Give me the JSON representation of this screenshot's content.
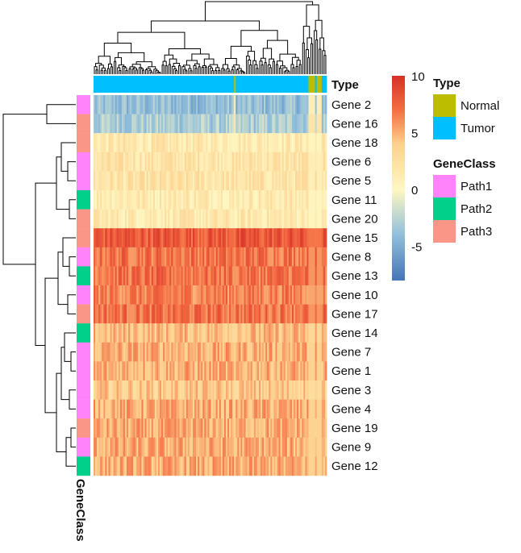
{
  "chart_data": {
    "type": "heatmap",
    "rows": [
      {
        "gene": "Gene 2",
        "class": "Path1"
      },
      {
        "gene": "Gene 16",
        "class": "Path3"
      },
      {
        "gene": "Gene 18",
        "class": "Path3"
      },
      {
        "gene": "Gene 6",
        "class": "Path1"
      },
      {
        "gene": "Gene 5",
        "class": "Path1"
      },
      {
        "gene": "Gene 11",
        "class": "Path2"
      },
      {
        "gene": "Gene 20",
        "class": "Path3"
      },
      {
        "gene": "Gene 15",
        "class": "Path3"
      },
      {
        "gene": "Gene 8",
        "class": "Path1"
      },
      {
        "gene": "Gene 13",
        "class": "Path2"
      },
      {
        "gene": "Gene 10",
        "class": "Path1"
      },
      {
        "gene": "Gene 17",
        "class": "Path3"
      },
      {
        "gene": "Gene 14",
        "class": "Path2"
      },
      {
        "gene": "Gene 7",
        "class": "Path1"
      },
      {
        "gene": "Gene 1",
        "class": "Path1"
      },
      {
        "gene": "Gene 3",
        "class": "Path1"
      },
      {
        "gene": "Gene 4",
        "class": "Path1"
      },
      {
        "gene": "Gene 19",
        "class": "Path3"
      },
      {
        "gene": "Gene 9",
        "class": "Path1"
      },
      {
        "gene": "Gene 12",
        "class": "Path2"
      }
    ],
    "row_mean_values": [
      -4.0,
      -3.0,
      1.5,
      2.0,
      2.0,
      1.5,
      1.5,
      8.0,
      7.0,
      7.0,
      6.5,
      7.0,
      4.5,
      5.0,
      5.0,
      4.0,
      5.0,
      5.0,
      5.0,
      5.0
    ],
    "sample_types": {
      "groups": [
        {
          "type": "Tumor",
          "count": 85
        },
        {
          "type": "Normal",
          "count": 1
        },
        {
          "type": "Tumor",
          "count": 44
        },
        {
          "type": "Normal",
          "count": 4
        },
        {
          "type": "Tumor",
          "count": 1
        },
        {
          "type": "Normal",
          "count": 3
        },
        {
          "type": "Tumor",
          "count": 3
        }
      ]
    },
    "color_scale": {
      "min": -8,
      "max": 10,
      "ticks": [
        10,
        5,
        0,
        -5
      ],
      "stops": [
        {
          "value": -8,
          "color": "#4575b4"
        },
        {
          "value": -4,
          "color": "#91bfdb"
        },
        {
          "value": 0,
          "color": "#fef7c2"
        },
        {
          "value": 4,
          "color": "#fdd18f"
        },
        {
          "value": 7,
          "color": "#f46d43"
        },
        {
          "value": 10,
          "color": "#d73027"
        }
      ]
    },
    "annotations": {
      "column_annotation_title": "Type",
      "row_annotation_title": "GeneClass"
    },
    "legends": {
      "type": {
        "title": "Type",
        "entries": [
          {
            "label": "Normal",
            "color": "#bcbd00"
          },
          {
            "label": "Tumor",
            "color": "#00bfff"
          }
        ]
      },
      "gene_class": {
        "title": "GeneClass",
        "entries": [
          {
            "label": "Path1",
            "color": "#ff83fa"
          },
          {
            "label": "Path2",
            "color": "#00d08a"
          },
          {
            "label": "Path3",
            "color": "#fa9687"
          }
        ]
      }
    },
    "dendrograms": {
      "row": true,
      "column": true
    }
  }
}
